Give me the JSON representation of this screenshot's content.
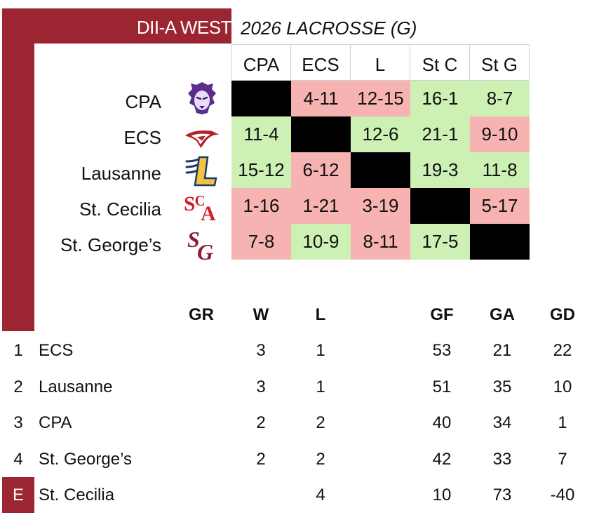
{
  "header": {
    "title": "DII-A WEST",
    "subtitle": "2026 LACROSSE (G)"
  },
  "matrix": {
    "columns": [
      "CPA",
      "ECS",
      "L",
      "St C",
      "St G"
    ],
    "rows": [
      {
        "team": "CPA",
        "logo": "lion-logo",
        "cells": [
          "",
          "4-11",
          "12-15",
          "16-1",
          "8-7"
        ],
        "results": [
          "self",
          "loss",
          "loss",
          "win",
          "win"
        ]
      },
      {
        "team": "ECS",
        "logo": "wing-logo",
        "cells": [
          "11-4",
          "",
          "12-6",
          "21-1",
          "9-10"
        ],
        "results": [
          "win",
          "self",
          "win",
          "win",
          "loss"
        ]
      },
      {
        "team": "Lausanne",
        "logo": "l-logo",
        "cells": [
          "15-12",
          "6-12",
          "",
          "19-3",
          "11-8"
        ],
        "results": [
          "win",
          "loss",
          "self",
          "win",
          "win"
        ]
      },
      {
        "team": "St. Cecilia",
        "logo": "sca-logo",
        "cells": [
          "1-16",
          "1-21",
          "3-19",
          "",
          "5-17"
        ],
        "results": [
          "loss",
          "loss",
          "loss",
          "self",
          "loss"
        ]
      },
      {
        "team": "St. George’s",
        "logo": "sg-logo",
        "cells": [
          "7-8",
          "10-9",
          "8-11",
          "17-5",
          ""
        ],
        "results": [
          "loss",
          "win",
          "loss",
          "win",
          "self"
        ]
      }
    ],
    "colors": {
      "win": "#cdf0b4",
      "loss": "#f7b3b1",
      "self": "#000000",
      "accent": "#9b2530"
    }
  },
  "standings": {
    "headers": {
      "gr": "GR",
      "w": "W",
      "l": "L",
      "gf": "GF",
      "ga": "GA",
      "gd": "GD"
    },
    "rows": [
      {
        "rank": "1",
        "team": "ECS",
        "gr": "",
        "w": "3",
        "l": "1",
        "gf": "53",
        "ga": "21",
        "gd": "22"
      },
      {
        "rank": "2",
        "team": "Lausanne",
        "gr": "",
        "w": "3",
        "l": "1",
        "gf": "51",
        "ga": "35",
        "gd": "10"
      },
      {
        "rank": "3",
        "team": "CPA",
        "gr": "",
        "w": "2",
        "l": "2",
        "gf": "40",
        "ga": "34",
        "gd": "1"
      },
      {
        "rank": "4",
        "team": "St. George’s",
        "gr": "",
        "w": "2",
        "l": "2",
        "gf": "42",
        "ga": "33",
        "gd": "7"
      },
      {
        "rank": "E",
        "team": "St. Cecilia",
        "gr": "",
        "w": "",
        "l": "4",
        "gf": "10",
        "ga": "73",
        "gd": "-40"
      }
    ]
  }
}
